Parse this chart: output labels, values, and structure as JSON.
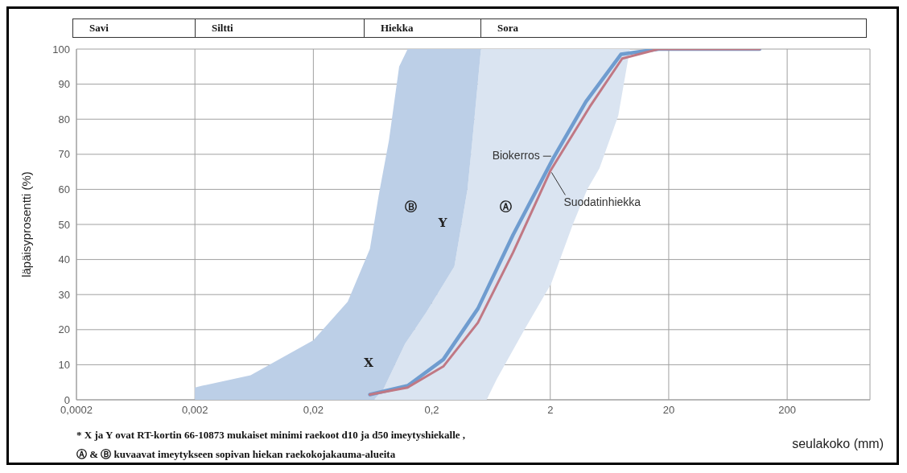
{
  "chart_data": {
    "type": "line",
    "xlabel": "seulakoko (mm)",
    "ylabel": "läpäisyprosentti (%)",
    "log": "x",
    "xlim": [
      0.0002,
      1000
    ],
    "xticks": [
      {
        "value": 0.0002,
        "label": "0,0002"
      },
      {
        "value": 0.002,
        "label": "0,002"
      },
      {
        "value": 0.02,
        "label": "0,02"
      },
      {
        "value": 0.2,
        "label": "0,2"
      },
      {
        "value": 2,
        "label": "2"
      },
      {
        "value": 20,
        "label": "20"
      },
      {
        "value": 200,
        "label": "200"
      }
    ],
    "ylim": [
      0,
      100
    ],
    "yticks": [
      0,
      10,
      20,
      30,
      40,
      50,
      60,
      70,
      80,
      90,
      100
    ],
    "grid": true,
    "series": [
      {
        "type": "area",
        "color": "#dae4f1",
        "x": [
          0.52,
          9.4,
          7.5,
          5.2,
          4.1,
          3.1,
          2.03,
          1.21,
          0.71,
          0.58,
          0.065,
          0.078,
          0.119,
          0.18,
          0.31,
          0.4,
          0.44,
          0.52
        ],
        "values": [
          100,
          100,
          81,
          66,
          60,
          50,
          33,
          20,
          6,
          0,
          0,
          3,
          16,
          25,
          38,
          60,
          74,
          100
        ]
      },
      {
        "type": "area",
        "color": "#bccfe7",
        "x": [
          0.002,
          0.002,
          0.0023,
          0.0059,
          0.02,
          0.039,
          0.06,
          0.071,
          0.087,
          0.106,
          0.125,
          0.52,
          0.44,
          0.4,
          0.31,
          0.18,
          0.119,
          0.078,
          0.065
        ],
        "values": [
          0,
          3.5,
          4,
          7,
          17,
          28,
          43,
          58,
          74,
          95,
          100,
          100,
          74,
          60,
          38,
          25,
          16,
          3,
          0
        ]
      },
      {
        "name": "Biokerros",
        "color": "#6f9ccf",
        "x": [
          0.06,
          0.125,
          0.25,
          0.49,
          0.97,
          2.13,
          4,
          7.9,
          16.4,
          117
        ],
        "values": [
          1.5,
          4,
          11.5,
          26,
          47,
          69,
          85,
          98.5,
          100,
          100
        ]
      },
      {
        "name": "Suodatinhiekka",
        "color": "#c07884",
        "x": [
          0.06,
          0.125,
          0.25,
          0.49,
          0.97,
          2.02,
          4.3,
          8.1,
          16.4,
          117
        ],
        "values": [
          1.5,
          3.5,
          9.5,
          22,
          42,
          65.5,
          83.5,
          97.3,
          100,
          100
        ]
      }
    ],
    "annotations": [
      "Savi",
      "Siltti",
      "Hiekka",
      "Sora",
      "Ⓑ",
      "Ⓐ",
      "Y",
      "X",
      "* X ja Y ovat RT-kortin 66-10873 mukaiset minimi raekoot d10 ja d50 imeytyshiekalle ,",
      "Ⓐ & Ⓑ kuvaavat imeytykseen sopivan hiekan raekokojakauma-alueita"
    ]
  }
}
